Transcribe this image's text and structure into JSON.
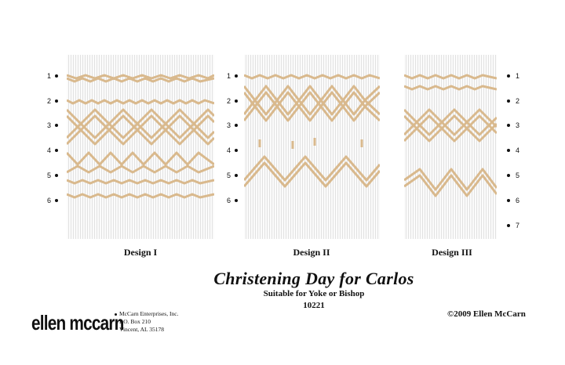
{
  "designs": [
    {
      "label": "Design I",
      "rows": [
        "1",
        "2",
        "3",
        "4",
        "5",
        "6"
      ]
    },
    {
      "label": "Design II",
      "rows": [
        "1",
        "2",
        "3",
        "4",
        "5",
        "6"
      ]
    },
    {
      "label": "Design III",
      "rows": [
        "1",
        "2",
        "3",
        "4",
        "5",
        "6",
        "7"
      ]
    }
  ],
  "title": "Christening Day for Carlos",
  "subtitle": "Suitable for Yoke or Bishop",
  "pattern_number": "10221",
  "logo_text": "ellen mccarn",
  "company": {
    "name": "McCarn Enterprises, Inc.",
    "address1": "P.O. Box 210",
    "address2": "Vincent, AL 35178"
  },
  "copyright": "©2009 Ellen McCarn",
  "colors": {
    "stitch": "#d9b98d",
    "pleat_light": "#fbfbfb",
    "pleat_dark": "#e2e2e2",
    "text": "#111111"
  }
}
